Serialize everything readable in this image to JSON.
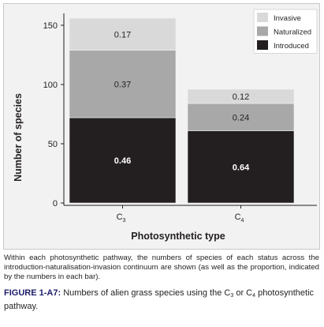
{
  "chart_data": {
    "type": "bar",
    "stacked": true,
    "categories": [
      "C3",
      "C4"
    ],
    "category_labels": [
      {
        "main": "C",
        "sub": "3"
      },
      {
        "main": "C",
        "sub": "4"
      }
    ],
    "series": [
      {
        "name": "Introduced",
        "color": "#231f20",
        "label_color": "#ffffff",
        "values": [
          72,
          61
        ],
        "labels": [
          "0.46",
          "0.64"
        ]
      },
      {
        "name": "Naturalized",
        "color": "#a8a8a8",
        "label_color": "#231f20",
        "values": [
          57,
          23
        ],
        "labels": [
          "0.37",
          "0.24"
        ]
      },
      {
        "name": "Invasive",
        "color": "#d9d9d9",
        "label_color": "#231f20",
        "values": [
          27,
          12
        ],
        "labels": [
          "0.17",
          "0.12"
        ]
      }
    ],
    "legend_order": [
      "Invasive",
      "Naturalized",
      "Introduced"
    ],
    "legend_position": "top-right",
    "xlabel": "Photosynthetic type",
    "ylabel": "Number of species",
    "ylim": [
      0,
      160
    ],
    "yticks": [
      0,
      50,
      100,
      150
    ],
    "grid": false
  },
  "caption": "Within each photosynthetic pathway, the numbers of species of each status across the introduction-naturalisation-invasion continuum are shown (as well as the proportion, indicated by the numbers in each bar).",
  "figure_label": {
    "id": "FIGURE 1-A7:",
    "text_before": "Numbers of alien grass species using the C",
    "sub1": "3",
    "text_middle": " or C",
    "sub2": "4",
    "text_after": " photosynthetic pathway."
  }
}
